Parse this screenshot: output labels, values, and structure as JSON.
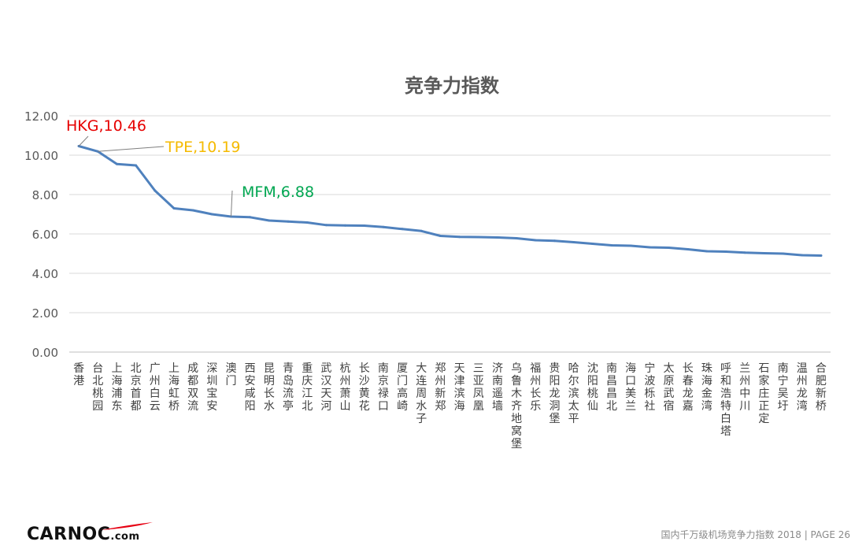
{
  "chart_data": {
    "type": "line",
    "title": "竞争力指数",
    "xlabel": "",
    "ylabel": "",
    "ylim": [
      0,
      12
    ],
    "yticks": [
      "12.00",
      "10.00",
      "8.00",
      "6.00",
      "4.00",
      "2.00",
      "0.00"
    ],
    "grid": true,
    "legend": "none",
    "categories": [
      "香港",
      "台北桃园",
      "上海浦东",
      "北京首都",
      "广州白云",
      "上海虹桥",
      "成都双流",
      "深圳宝安",
      "澳门",
      "西安咸阳",
      "昆明长水",
      "青岛流亭",
      "重庆江北",
      "武汉天河",
      "杭州萧山",
      "长沙黄花",
      "南京禄口",
      "厦门高崎",
      "大连周水子",
      "郑州新郑",
      "天津滨海",
      "三亚凤凰",
      "济南遥墙",
      "乌鲁木齐地窝堡",
      "福州长乐",
      "贵阳龙洞堡",
      "哈尔滨太平",
      "沈阳桃仙",
      "南昌昌北",
      "海口美兰",
      "宁波栎社",
      "太原武宿",
      "长春龙嘉",
      "珠海金湾",
      "呼和浩特白塔",
      "兰州中川",
      "石家庄正定",
      "南宁吴圩",
      "温州龙湾",
      "合肥新桥"
    ],
    "series": [
      {
        "values": [
          10.46,
          10.19,
          9.55,
          9.48,
          8.2,
          7.3,
          7.2,
          7.0,
          6.88,
          6.85,
          6.68,
          6.63,
          6.58,
          6.45,
          6.43,
          6.42,
          6.35,
          6.25,
          6.15,
          5.9,
          5.85,
          5.84,
          5.82,
          5.78,
          5.68,
          5.65,
          5.58,
          5.5,
          5.42,
          5.4,
          5.32,
          5.3,
          5.22,
          5.12,
          5.1,
          5.05,
          5.02,
          5.0,
          4.92,
          4.9
        ],
        "color": "#4F81BD"
      }
    ],
    "annotations": [
      {
        "text": "HKG,10.46",
        "index": 0,
        "color": "#E60000"
      },
      {
        "text": "TPE,10.19",
        "index": 1,
        "color": "#F5BA00"
      },
      {
        "text": "MFM,6.88",
        "index": 8,
        "color": "#00A651"
      }
    ]
  },
  "footer": {
    "logo_brand": "CARNOC",
    "logo_suffix": ".com",
    "caption": "国内千万级机场竞争力指数 2018 |   PAGE 26"
  }
}
